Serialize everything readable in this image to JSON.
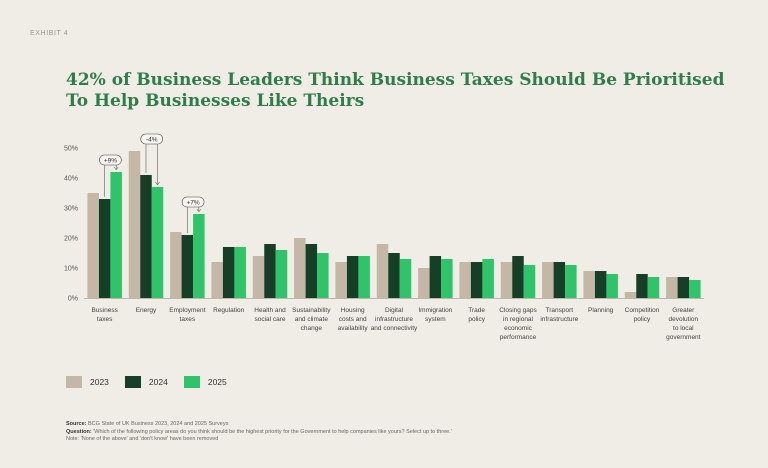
{
  "exhibit": "EXHIBIT 4",
  "title": "42% of Business Leaders Think Business Taxes Should Be Prioritised To Help Businesses Like Theirs",
  "colors": {
    "2023": "#c4b7a6",
    "2024": "#173f27",
    "2025": "#2fc46a"
  },
  "footer": {
    "source_label": "Source:",
    "source_text": " BCG State of UK Business 2023, 2024 and 2025 Surveys",
    "question_label": "Question:",
    "question_text": " 'Which of the following policy areas do you think should be the highest priority for the Government to help companies like yours? Select up to three.'",
    "note": "Note: 'None of the above' and 'don't know' have been removed"
  },
  "chart_data": {
    "type": "bar",
    "ylim": [
      0,
      50
    ],
    "yticks": [
      "0%",
      "10%",
      "20%",
      "30%",
      "40%",
      "50%"
    ],
    "grid": false,
    "legend_position": "bottom-left",
    "categories": [
      [
        "Business",
        "taxes"
      ],
      [
        "Energy"
      ],
      [
        "Employment",
        "taxes"
      ],
      [
        "Regulation"
      ],
      [
        "Health and",
        "social care"
      ],
      [
        "Sustainability",
        "and climate",
        "change"
      ],
      [
        "Housing",
        "costs and",
        "availability"
      ],
      [
        "Digital",
        "infrastructure",
        "and connectivity"
      ],
      [
        "Immigration",
        "system"
      ],
      [
        "Trade",
        "policy"
      ],
      [
        "Closing gaps",
        "in regional",
        "economic",
        "performance"
      ],
      [
        "Transport",
        "infrastructure"
      ],
      [
        "Planning"
      ],
      [
        "Competition",
        "policy"
      ],
      [
        "Greater",
        "devolution",
        "to local",
        "government"
      ]
    ],
    "series": [
      {
        "name": "2023",
        "values": [
          35,
          49,
          22,
          12,
          14,
          20,
          12,
          18,
          10,
          12,
          12,
          12,
          9,
          2,
          7
        ]
      },
      {
        "name": "2024",
        "values": [
          33,
          41,
          21,
          17,
          18,
          18,
          14,
          15,
          14,
          12,
          14,
          12,
          9,
          8,
          7
        ]
      },
      {
        "name": "2025",
        "values": [
          42,
          37,
          28,
          17,
          16,
          15,
          14,
          13,
          13,
          13,
          11,
          11,
          8,
          7,
          6
        ]
      }
    ],
    "annotations": [
      {
        "text": "+9%",
        "category": 0
      },
      {
        "text": "-4%",
        "category": 1
      },
      {
        "text": "+7%",
        "category": 2
      }
    ]
  }
}
